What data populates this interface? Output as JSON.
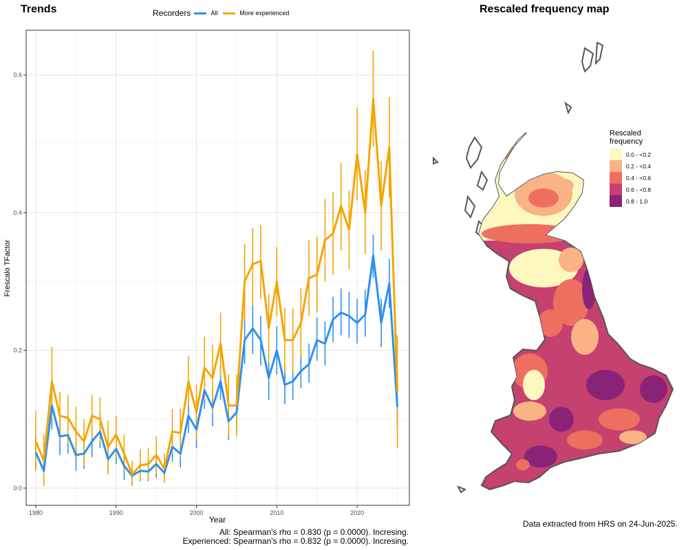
{
  "left_panel": {
    "title": "Trends",
    "legend": {
      "title": "Recorders",
      "items": [
        {
          "label": "All",
          "color": "#2E8FF0"
        },
        {
          "label": "More experienced",
          "color": "#F5A400"
        }
      ]
    },
    "caption_lines": [
      "All: Spearman's rho = 0.830 (p = 0.0000). Incresing.",
      "Experienced: Spearman's rho = 0.832 (p = 0.0000). Incresing."
    ]
  },
  "right_panel": {
    "title": "Rescaled frequency map",
    "legend": {
      "title_line1": "Rescaled",
      "title_line2": "frequency",
      "bins": [
        {
          "label": "0.0 - <0.2",
          "color": "#FCF8C0"
        },
        {
          "label": "0.2 - <0.4",
          "color": "#F9B384"
        },
        {
          "label": "0.4 - <0.6",
          "color": "#EE6E60"
        },
        {
          "label": "0.6 - <0.8",
          "color": "#C44170"
        },
        {
          "label": "0.8 - 1.0",
          "color": "#8A2378"
        }
      ]
    },
    "footnote": "Data extracted from HRS on 24-Jun-2025."
  },
  "chart_data": {
    "type": "line",
    "title": "Trends",
    "xlabel": "Year",
    "ylabel": "Frescalo TFactor",
    "xlim": [
      1978.8,
      2026.5
    ],
    "ylim": [
      -0.025,
      0.665
    ],
    "x_ticks": [
      1980,
      1990,
      2000,
      2010,
      2020
    ],
    "y_ticks": [
      0.0,
      0.2,
      0.4,
      0.6
    ],
    "y_tick_labels": [
      "0.0",
      "0.2",
      "0.4",
      "0.6"
    ],
    "grid": true,
    "legend_position": "top",
    "x": [
      1980,
      1981,
      1982,
      1983,
      1984,
      1985,
      1986,
      1987,
      1988,
      1989,
      1990,
      1991,
      1992,
      1993,
      1994,
      1995,
      1996,
      1997,
      1998,
      1999,
      2000,
      2001,
      2002,
      2003,
      2004,
      2005,
      2006,
      2007,
      2008,
      2009,
      2010,
      2011,
      2012,
      2013,
      2014,
      2015,
      2016,
      2017,
      2018,
      2019,
      2020,
      2021,
      2022,
      2023,
      2024,
      2025
    ],
    "series": [
      {
        "name": "All",
        "color": "#2E8FF0",
        "values": [
          0.052,
          0.025,
          0.12,
          0.075,
          0.077,
          0.048,
          0.05,
          0.068,
          0.082,
          0.042,
          0.057,
          0.032,
          0.018,
          0.025,
          0.024,
          0.035,
          0.022,
          0.06,
          0.05,
          0.105,
          0.085,
          0.142,
          0.117,
          0.155,
          0.097,
          0.11,
          0.215,
          0.232,
          0.215,
          0.16,
          0.2,
          0.15,
          0.155,
          0.17,
          0.18,
          0.215,
          0.21,
          0.245,
          0.255,
          0.25,
          0.24,
          0.252,
          0.338,
          0.24,
          0.297,
          0.118
        ],
        "lower": [
          0.028,
          0.008,
          0.085,
          0.048,
          0.05,
          0.025,
          0.028,
          0.045,
          0.058,
          0.02,
          0.035,
          0.012,
          0.005,
          0.01,
          0.01,
          0.015,
          0.008,
          0.038,
          0.03,
          0.08,
          0.058,
          0.115,
          0.09,
          0.128,
          0.07,
          0.082,
          0.18,
          0.195,
          0.178,
          0.128,
          0.165,
          0.122,
          0.128,
          0.145,
          0.153,
          0.185,
          0.178,
          0.212,
          0.222,
          0.218,
          0.21,
          0.22,
          0.305,
          0.205,
          0.262,
          0.09
        ],
        "upper": [
          0.078,
          0.045,
          0.158,
          0.105,
          0.104,
          0.072,
          0.073,
          0.092,
          0.108,
          0.066,
          0.08,
          0.052,
          0.032,
          0.04,
          0.04,
          0.055,
          0.038,
          0.085,
          0.072,
          0.13,
          0.115,
          0.172,
          0.145,
          0.182,
          0.125,
          0.138,
          0.255,
          0.268,
          0.25,
          0.195,
          0.235,
          0.178,
          0.185,
          0.2,
          0.21,
          0.248,
          0.242,
          0.278,
          0.29,
          0.285,
          0.275,
          0.288,
          0.368,
          0.275,
          0.333,
          0.148
        ]
      },
      {
        "name": "More experienced",
        "color": "#F5A400",
        "values": [
          0.068,
          0.04,
          0.155,
          0.105,
          0.102,
          0.082,
          0.068,
          0.105,
          0.1,
          0.06,
          0.078,
          0.05,
          0.02,
          0.033,
          0.035,
          0.048,
          0.028,
          0.082,
          0.08,
          0.155,
          0.11,
          0.175,
          0.16,
          0.21,
          0.12,
          0.12,
          0.3,
          0.325,
          0.33,
          0.232,
          0.3,
          0.215,
          0.215,
          0.24,
          0.305,
          0.31,
          0.36,
          0.37,
          0.41,
          0.375,
          0.485,
          0.4,
          0.565,
          0.41,
          0.495,
          0.14
        ],
        "lower": [
          0.025,
          0.003,
          0.1,
          0.07,
          0.066,
          0.045,
          0.033,
          0.072,
          0.065,
          0.02,
          0.045,
          0.025,
          0.003,
          0.012,
          0.012,
          0.02,
          0.008,
          0.05,
          0.045,
          0.118,
          0.07,
          0.128,
          0.11,
          0.162,
          0.075,
          0.075,
          0.245,
          0.265,
          0.275,
          0.182,
          0.25,
          0.168,
          0.168,
          0.19,
          0.25,
          0.255,
          0.3,
          0.31,
          0.345,
          0.318,
          0.418,
          0.34,
          0.495,
          0.345,
          0.422,
          0.058
        ],
        "upper": [
          0.112,
          0.078,
          0.205,
          0.14,
          0.135,
          0.118,
          0.1,
          0.135,
          0.132,
          0.098,
          0.105,
          0.078,
          0.04,
          0.056,
          0.058,
          0.075,
          0.05,
          0.115,
          0.115,
          0.192,
          0.15,
          0.22,
          0.208,
          0.255,
          0.165,
          0.165,
          0.355,
          0.378,
          0.382,
          0.282,
          0.35,
          0.262,
          0.262,
          0.29,
          0.36,
          0.365,
          0.42,
          0.43,
          0.472,
          0.432,
          0.552,
          0.462,
          0.635,
          0.475,
          0.568,
          0.222
        ]
      }
    ]
  }
}
